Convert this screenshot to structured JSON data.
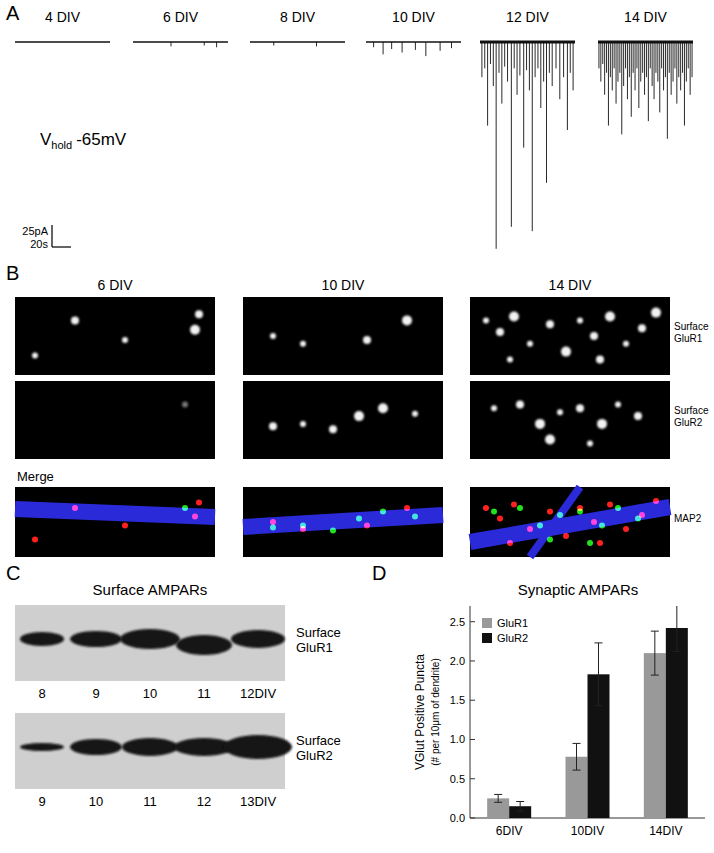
{
  "panel_a": {
    "letter": "A",
    "traces": [
      {
        "label": "4 DIV",
        "events": []
      },
      {
        "label": "6 DIV",
        "events": [
          [
            40,
            5
          ],
          [
            75,
            4
          ],
          [
            88,
            6
          ]
        ]
      },
      {
        "label": "8 DIV",
        "events": [
          [
            25,
            4
          ],
          [
            70,
            5
          ]
        ]
      },
      {
        "label": "10 DIV",
        "events": [
          [
            8,
            6
          ],
          [
            18,
            14
          ],
          [
            27,
            8
          ],
          [
            38,
            12
          ],
          [
            52,
            9
          ],
          [
            63,
            16
          ],
          [
            78,
            10
          ],
          [
            90,
            7
          ]
        ]
      },
      {
        "label": "12 DIV",
        "events": [
          [
            2,
            40
          ],
          [
            5,
            30
          ],
          [
            8,
            95
          ],
          [
            11,
            25
          ],
          [
            14,
            50
          ],
          [
            17,
            235
          ],
          [
            20,
            35
          ],
          [
            23,
            70
          ],
          [
            26,
            28
          ],
          [
            29,
            45
          ],
          [
            33,
            210
          ],
          [
            36,
            30
          ],
          [
            39,
            60
          ],
          [
            42,
            38
          ],
          [
            46,
            120
          ],
          [
            49,
            32
          ],
          [
            52,
            55
          ],
          [
            55,
            215
          ],
          [
            58,
            40
          ],
          [
            61,
            30
          ],
          [
            64,
            75
          ],
          [
            67,
            45
          ],
          [
            70,
            160
          ],
          [
            73,
            35
          ],
          [
            76,
            50
          ],
          [
            80,
            30
          ],
          [
            84,
            65
          ],
          [
            88,
            40
          ],
          [
            92,
            100
          ],
          [
            95,
            35
          ],
          [
            98,
            55
          ]
        ]
      },
      {
        "label": "14 DIV",
        "events": [
          [
            1,
            30
          ],
          [
            3,
            45
          ],
          [
            5,
            25
          ],
          [
            7,
            60
          ],
          [
            9,
            35
          ],
          [
            11,
            95
          ],
          [
            13,
            40
          ],
          [
            15,
            55
          ],
          [
            17,
            30
          ],
          [
            19,
            70
          ],
          [
            21,
            45
          ],
          [
            23,
            35
          ],
          [
            25,
            105
          ],
          [
            27,
            50
          ],
          [
            29,
            30
          ],
          [
            31,
            65
          ],
          [
            33,
            40
          ],
          [
            35,
            85
          ],
          [
            37,
            35
          ],
          [
            39,
            55
          ],
          [
            41,
            30
          ],
          [
            43,
            75
          ],
          [
            45,
            45
          ],
          [
            47,
            35
          ],
          [
            49,
            60
          ],
          [
            51,
            40
          ],
          [
            53,
            90
          ],
          [
            55,
            30
          ],
          [
            57,
            50
          ],
          [
            59,
            65
          ],
          [
            61,
            35
          ],
          [
            63,
            45
          ],
          [
            65,
            80
          ],
          [
            67,
            30
          ],
          [
            69,
            55
          ],
          [
            71,
            40
          ],
          [
            73,
            110
          ],
          [
            75,
            35
          ],
          [
            77,
            60
          ],
          [
            79,
            45
          ],
          [
            81,
            30
          ],
          [
            83,
            70
          ],
          [
            85,
            40
          ],
          [
            87,
            55
          ],
          [
            89,
            35
          ],
          [
            91,
            95
          ],
          [
            93,
            45
          ],
          [
            95,
            30
          ],
          [
            97,
            60
          ],
          [
            99,
            40
          ]
        ]
      }
    ],
    "holding": {
      "symbol": "V",
      "subscript": "hold",
      "value": "-65mV"
    },
    "scale_bar": {
      "current_pA": 25,
      "current_label": "25pA",
      "time_s": 20,
      "time_label": "20s"
    }
  },
  "panel_b": {
    "letter": "B",
    "columns": [
      "6 DIV",
      "10 DIV",
      "14 DIV"
    ],
    "row_labels": [
      "Surface GluR1",
      "Surface GluR2",
      "MAP2"
    ],
    "merge_label": "Merge"
  },
  "panel_c": {
    "letter": "C",
    "title": "Surface AMPARs",
    "blots": [
      {
        "label": "Surface GluR1",
        "lanes": [
          "8",
          "9",
          "10",
          "11",
          "12DIV"
        ]
      },
      {
        "label": "Surface GluR2",
        "lanes": [
          "9",
          "10",
          "11",
          "12",
          "13DIV"
        ]
      }
    ]
  },
  "panel_d": {
    "letter": "D"
  },
  "chart_data": {
    "type": "bar",
    "title": "Synaptic AMPARs",
    "y_label": [
      "VGlut Positive Puncta",
      "(# per 10μm of dendrite)"
    ],
    "categories": [
      "6DIV",
      "10DIV",
      "14DIV"
    ],
    "series": [
      {
        "name": "GluR1",
        "color": "#999999",
        "values": [
          0.25,
          0.78,
          2.1
        ],
        "errors": [
          0.05,
          0.17,
          0.28
        ]
      },
      {
        "name": "GluR2",
        "color": "#111111",
        "values": [
          0.15,
          1.83,
          2.42
        ],
        "errors": [
          0.06,
          0.4,
          0.3
        ]
      }
    ],
    "ylim": [
      0,
      2.7
    ],
    "yticks": [
      {
        "value": 0,
        "label": "0.0"
      },
      0.5,
      {
        "value": 1,
        "label": "1.0"
      },
      1.5,
      {
        "value": 2,
        "label": "2.0"
      },
      2.5
    ],
    "legend": "upper left",
    "grid": false
  }
}
